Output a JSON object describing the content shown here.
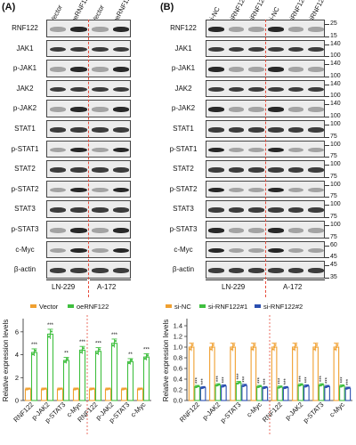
{
  "panel_a": {
    "letter": "(A)",
    "lanes": [
      "Vector",
      "oeRNF122",
      "Vector",
      "oeRNF122"
    ],
    "blots": [
      "RNF122",
      "JAK1",
      "p-JAK1",
      "JAK2",
      "p-JAK2",
      "STAT1",
      "p-STAT1",
      "STAT2",
      "p-STAT2",
      "STAT3",
      "p-STAT3",
      "c-Myc",
      "β-actin"
    ],
    "cell_lines": [
      "LN-229",
      "A-172"
    ]
  },
  "panel_b": {
    "letter": "(B)",
    "lanes": [
      "si-NC",
      "siRNF122#1",
      "siRNF122#2",
      "si-NC",
      "siRNF122#1",
      "siRNF122#2"
    ],
    "blots": [
      "RNF122",
      "JAK1",
      "p-JAK1",
      "JAK2",
      "p-JAK2",
      "STAT1",
      "p-STAT1",
      "STAT2",
      "p-STAT2",
      "STAT3",
      "p-STAT3",
      "c-Myc",
      "β-actin"
    ],
    "mw_markers": [
      [
        "25",
        "15"
      ],
      [
        "140",
        "100"
      ],
      [
        "140",
        "100"
      ],
      [
        "140",
        "100"
      ],
      [
        "140",
        "100"
      ],
      [
        "100",
        "75"
      ],
      [
        "100",
        "75"
      ],
      [
        "100",
        "75"
      ],
      [
        "100",
        "75"
      ],
      [
        "100",
        "75"
      ],
      [
        "100",
        "75"
      ],
      [
        "60",
        "45"
      ],
      [
        "45",
        "35"
      ]
    ],
    "cell_lines": [
      "LN-229",
      "A-172"
    ]
  },
  "chart_data": [
    {
      "type": "bar",
      "panel": "A",
      "ylabel": "Relative expression levels",
      "ylim": [
        0,
        7
      ],
      "yticks": [
        0,
        2,
        4,
        6
      ],
      "categories": [
        "RNF122",
        "p-JAK2",
        "p-STAT3",
        "c-Myc",
        "RNF122",
        "p-JAK2",
        "p-STAT3",
        "c-Myc"
      ],
      "cell_lines": [
        "LN-229",
        "A-172"
      ],
      "series": [
        {
          "name": "Vector",
          "color": "#f0a030",
          "values": [
            1.0,
            1.0,
            1.0,
            1.0,
            1.0,
            1.0,
            1.0,
            1.0
          ]
        },
        {
          "name": "oeRNF122",
          "color": "#3fbf3f",
          "values": [
            4.2,
            5.8,
            3.5,
            4.4,
            4.3,
            5.0,
            3.4,
            3.8
          ]
        }
      ],
      "significance": [
        "***",
        "***",
        "**",
        "***",
        "***",
        "***",
        "**",
        "***"
      ]
    },
    {
      "type": "bar",
      "panel": "B",
      "ylabel": "Relative expression levels",
      "ylim": [
        0.0,
        1.5
      ],
      "yticks": [
        0.0,
        0.2,
        0.4,
        0.6,
        0.8,
        1.0,
        1.2,
        1.4
      ],
      "categories": [
        "RNF122",
        "p-JAK2",
        "p-STAT3",
        "c-Myc",
        "RNF122",
        "p-JAK2",
        "p-STAT3",
        "c-Myc"
      ],
      "cell_lines": [
        "LN-229",
        "A-172"
      ],
      "series": [
        {
          "name": "si-NC",
          "color": "#f0a030",
          "values": [
            1.0,
            1.0,
            1.0,
            1.0,
            1.0,
            1.0,
            1.0,
            1.0
          ]
        },
        {
          "name": "si-RNF122#1",
          "color": "#3fbf3f",
          "values": [
            0.26,
            0.29,
            0.33,
            0.26,
            0.25,
            0.29,
            0.29,
            0.27
          ]
        },
        {
          "name": "si-RNF122#2",
          "color": "#2b4fb0",
          "values": [
            0.24,
            0.27,
            0.28,
            0.24,
            0.24,
            0.27,
            0.26,
            0.23
          ]
        }
      ],
      "significance": [
        "***",
        "***",
        "***",
        "***",
        "***",
        "***",
        "***",
        "***"
      ]
    }
  ]
}
